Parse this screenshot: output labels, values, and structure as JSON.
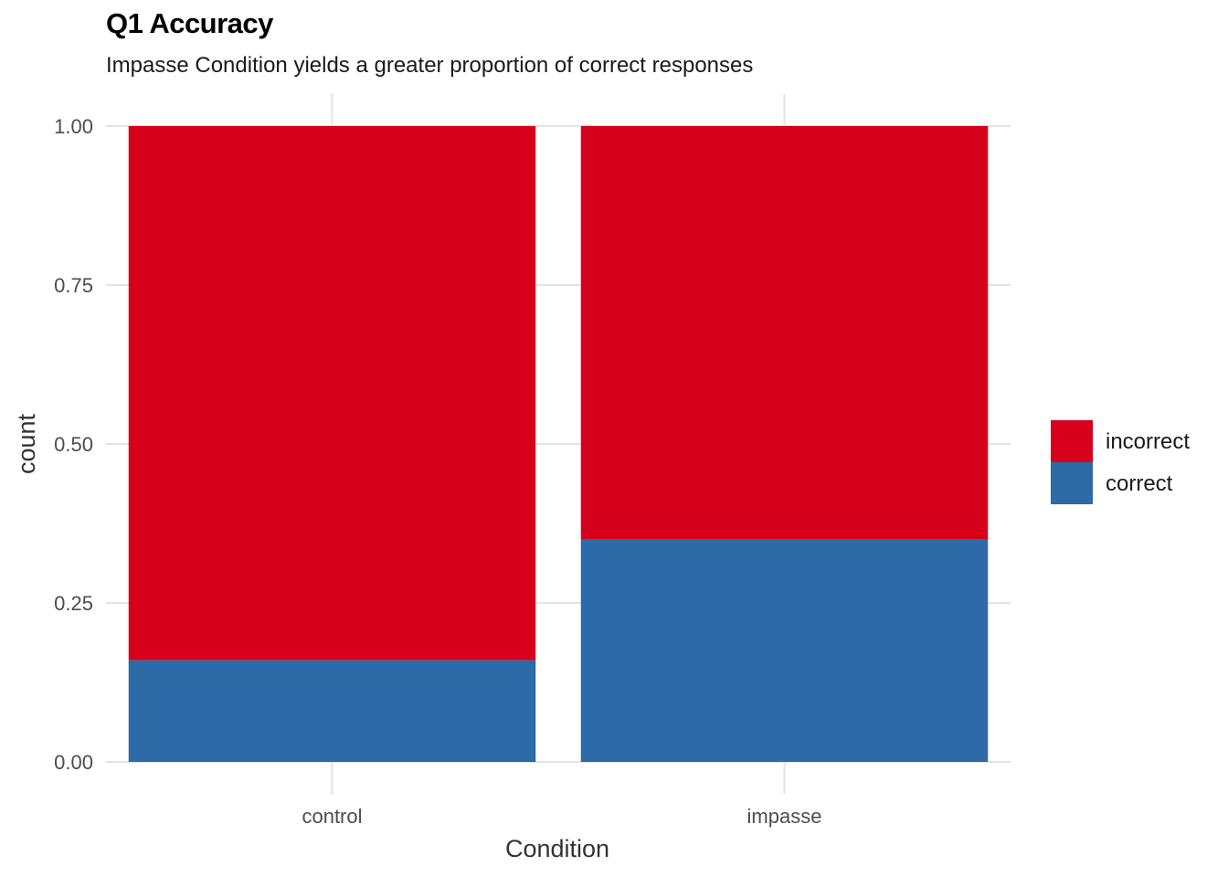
{
  "title": "Q1 Accuracy",
  "subtitle": "Impasse Condition yields a greater proportion of correct responses",
  "chart_data": {
    "type": "bar",
    "stacked": true,
    "categories": [
      "control",
      "impasse"
    ],
    "series": [
      {
        "name": "correct",
        "values": [
          0.16,
          0.35
        ],
        "color": "#2C6AA8"
      },
      {
        "name": "incorrect",
        "values": [
          0.84,
          0.65
        ],
        "color": "#D7001A"
      }
    ],
    "xlabel": "Condition",
    "ylabel": "count",
    "ylim": [
      0,
      1
    ],
    "yticks": [
      "0.00",
      "0.25",
      "0.50",
      "0.75",
      "1.00"
    ],
    "ytick_values": [
      0,
      0.25,
      0.5,
      0.75,
      1
    ],
    "grid": true,
    "legend": {
      "position": "right",
      "entries": [
        {
          "name": "incorrect",
          "color": "#D7001A"
        },
        {
          "name": "correct",
          "color": "#2C6AA8"
        }
      ]
    }
  }
}
